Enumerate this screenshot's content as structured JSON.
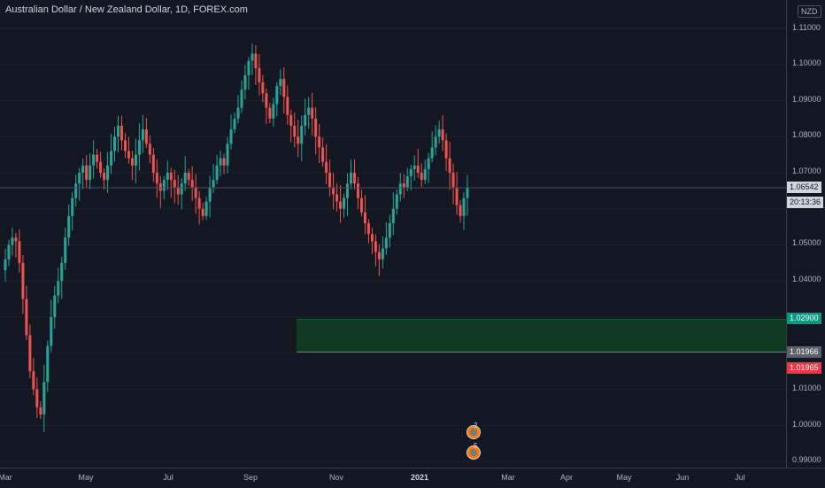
{
  "header": {
    "title": "Australian Dollar / New Zealand Dollar, 1D, FOREX.com"
  },
  "axis": {
    "currency": "NZD",
    "y_ticks": [
      "1.11000",
      "1.10000",
      "1.09000",
      "1.08000",
      "1.07000",
      "1.05000",
      "1.04000",
      "1.01000",
      "1.00000",
      "0.99000"
    ],
    "x_ticks": [
      {
        "label": "Mar",
        "bold": false
      },
      {
        "label": "May",
        "bold": false
      },
      {
        "label": "Jul",
        "bold": false
      },
      {
        "label": "Sep",
        "bold": false
      },
      {
        "label": "Nov",
        "bold": false
      },
      {
        "label": "2021",
        "bold": true
      },
      {
        "label": "Mar",
        "bold": false
      },
      {
        "label": "Apr",
        "bold": false
      },
      {
        "label": "May",
        "bold": false
      },
      {
        "label": "Jun",
        "bold": false
      },
      {
        "label": "Jul",
        "bold": false
      }
    ]
  },
  "price_labels": {
    "current": "1.06542",
    "timer": "20:13:36",
    "zone_top": "1.02900",
    "zone_bottom": "1.01966",
    "red": "1.01965"
  },
  "events": [
    {
      "name": "event-marker-earnings",
      "count": "2"
    },
    {
      "name": "event-marker-dividends",
      "count": "5"
    }
  ],
  "colors": {
    "up": "#26a69a",
    "down": "#ef5350",
    "background": "#131722",
    "zone": "#0f3a22"
  },
  "chart_data": {
    "type": "candlestick",
    "symbol": "AUDNZD",
    "ylim": [
      0.99,
      1.115
    ],
    "close_path": [
      1.043,
      1.046,
      1.05,
      1.052,
      1.051,
      1.045,
      1.035,
      1.025,
      1.015,
      1.01,
      1.005,
      1.003,
      1.012,
      1.022,
      1.03,
      1.036,
      1.04,
      1.045,
      1.052,
      1.058,
      1.063,
      1.067,
      1.07,
      1.072,
      1.068,
      1.072,
      1.075,
      1.073,
      1.07,
      1.068,
      1.072,
      1.076,
      1.08,
      1.083,
      1.079,
      1.076,
      1.074,
      1.072,
      1.075,
      1.079,
      1.082,
      1.078,
      1.075,
      1.07,
      1.067,
      1.065,
      1.068,
      1.07,
      1.068,
      1.066,
      1.064,
      1.067,
      1.07,
      1.068,
      1.066,
      1.063,
      1.06,
      1.058,
      1.062,
      1.066,
      1.068,
      1.072,
      1.074,
      1.072,
      1.078,
      1.082,
      1.085,
      1.088,
      1.093,
      1.097,
      1.101,
      1.103,
      1.099,
      1.095,
      1.092,
      1.088,
      1.085,
      1.089,
      1.094,
      1.096,
      1.091,
      1.086,
      1.083,
      1.08,
      1.078,
      1.083,
      1.086,
      1.088,
      1.085,
      1.08,
      1.077,
      1.073,
      1.07,
      1.066,
      1.064,
      1.062,
      1.06,
      1.063,
      1.067,
      1.07,
      1.067,
      1.063,
      1.059,
      1.056,
      1.053,
      1.051,
      1.048,
      1.046,
      1.049,
      1.052,
      1.056,
      1.06,
      1.064,
      1.067,
      1.066,
      1.069,
      1.071,
      1.072,
      1.07,
      1.068,
      1.071,
      1.074,
      1.077,
      1.08,
      1.082,
      1.079,
      1.074,
      1.07,
      1.066,
      1.061,
      1.058,
      1.063,
      1.066
    ]
  }
}
